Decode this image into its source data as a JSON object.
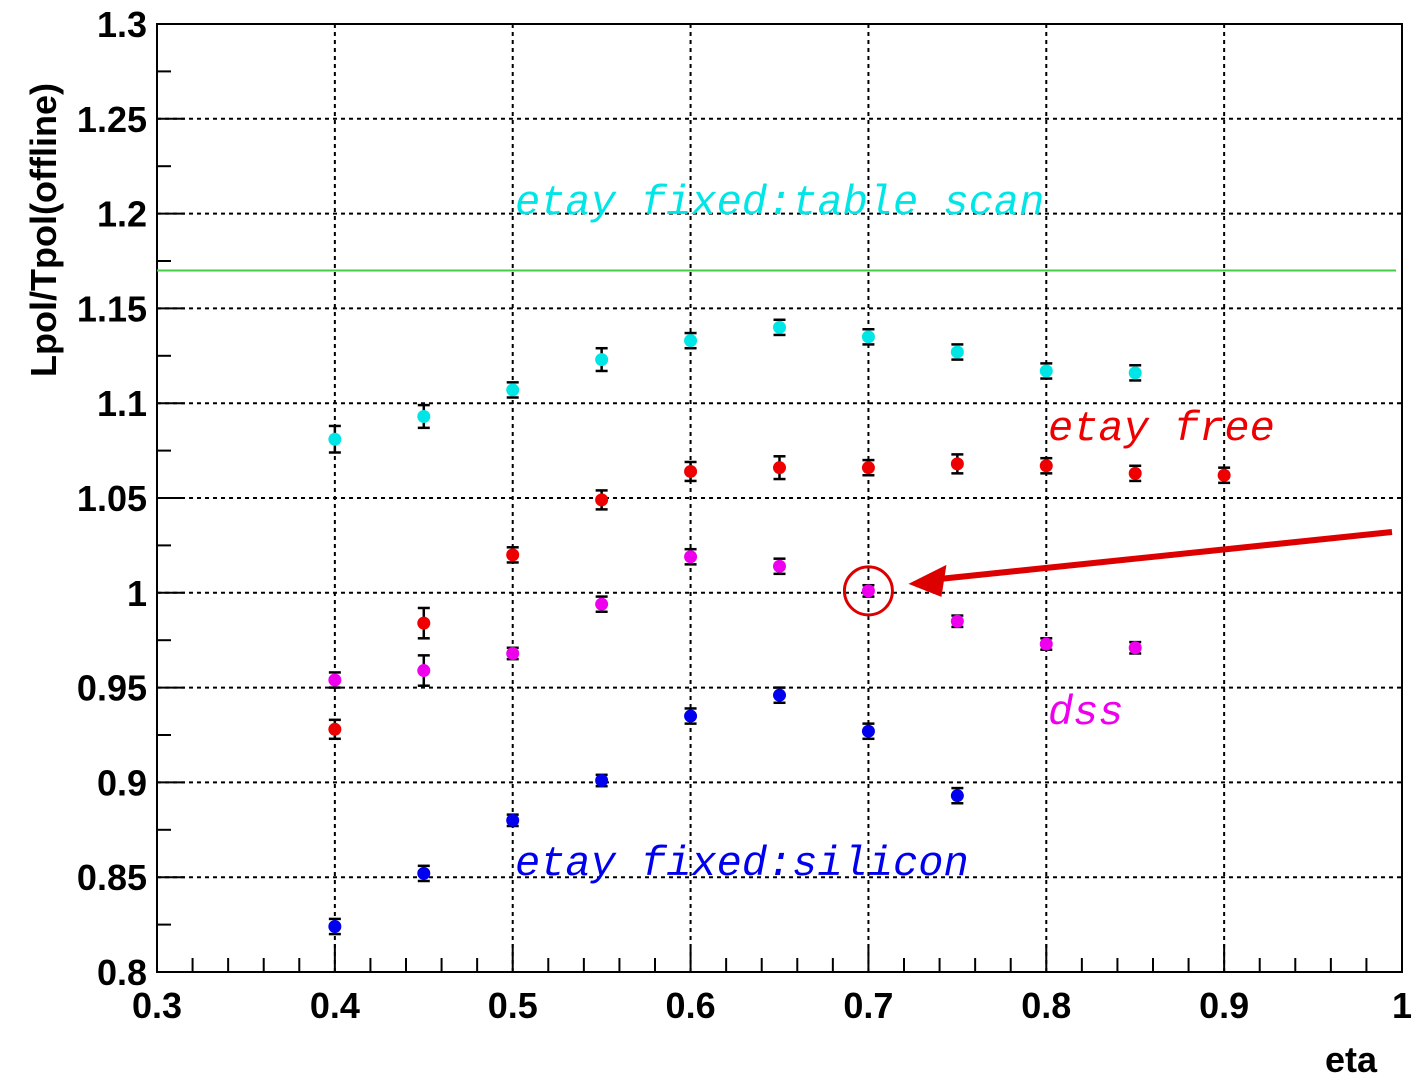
{
  "chart_data": {
    "type": "scatter",
    "xlabel": "eta",
    "ylabel": "Lpol/Tpol(offline)",
    "xlim": [
      0.3,
      1.0
    ],
    "ylim": [
      0.8,
      1.3
    ],
    "grid": true,
    "x_ticks": [
      "0.3",
      "0.4",
      "0.5",
      "0.6",
      "0.7",
      "0.8",
      "0.9",
      "1"
    ],
    "y_ticks": [
      "0.8",
      "0.85",
      "0.9",
      "0.95",
      "1",
      "1.05",
      "1.1",
      "1.15",
      "1.2",
      "1.25",
      "1.3"
    ],
    "reference_line": {
      "y": 1.17,
      "color": "#44cc44"
    },
    "series": [
      {
        "name": "etay fixed:table scan",
        "color": "#00e5e5",
        "x": [
          0.4,
          0.45,
          0.5,
          0.55,
          0.6,
          0.65,
          0.7,
          0.75,
          0.8,
          0.85
        ],
        "y": [
          1.081,
          1.093,
          1.107,
          1.123,
          1.133,
          1.14,
          1.135,
          1.127,
          1.117,
          1.116
        ],
        "err": [
          0.007,
          0.006,
          0.004,
          0.006,
          0.004,
          0.004,
          0.004,
          0.004,
          0.004,
          0.004
        ]
      },
      {
        "name": "etay free",
        "color": "#ee0000",
        "x": [
          0.4,
          0.45,
          0.5,
          0.55,
          0.6,
          0.65,
          0.7,
          0.75,
          0.8,
          0.85,
          0.9
        ],
        "y": [
          0.928,
          0.984,
          1.02,
          1.049,
          1.064,
          1.066,
          1.066,
          1.068,
          1.067,
          1.063,
          1.062
        ],
        "err": [
          0.005,
          0.008,
          0.004,
          0.005,
          0.005,
          0.006,
          0.004,
          0.005,
          0.004,
          0.004,
          0.004
        ]
      },
      {
        "name": "dss",
        "color": "#ee00ee",
        "x": [
          0.4,
          0.45,
          0.5,
          0.55,
          0.6,
          0.65,
          0.7,
          0.75,
          0.8,
          0.85
        ],
        "y": [
          0.954,
          0.959,
          0.968,
          0.994,
          1.019,
          1.014,
          1.001,
          0.985,
          0.973,
          0.971
        ],
        "err": [
          0.004,
          0.008,
          0.003,
          0.004,
          0.004,
          0.004,
          0.003,
          0.003,
          0.003,
          0.003
        ]
      },
      {
        "name": "etay fixed:silicon",
        "color": "#0000ee",
        "x": [
          0.4,
          0.45,
          0.5,
          0.55,
          0.6,
          0.65,
          0.7,
          0.75
        ],
        "y": [
          0.824,
          0.852,
          0.88,
          0.901,
          0.935,
          0.946,
          0.927,
          0.893
        ],
        "err": [
          0.004,
          0.004,
          0.003,
          0.003,
          0.004,
          0.004,
          0.004,
          0.004
        ]
      }
    ],
    "annotations": [
      {
        "text": "etay fixed:table scan",
        "color": "#00e5e5"
      },
      {
        "text": "etay free",
        "color": "#ee0000"
      },
      {
        "text": "dss",
        "color": "#ee00ee"
      },
      {
        "text": "etay fixed:silicon",
        "color": "#0000ee"
      }
    ],
    "highlight": {
      "x": 0.7,
      "y": 1.001,
      "color": "#dd0000"
    }
  }
}
